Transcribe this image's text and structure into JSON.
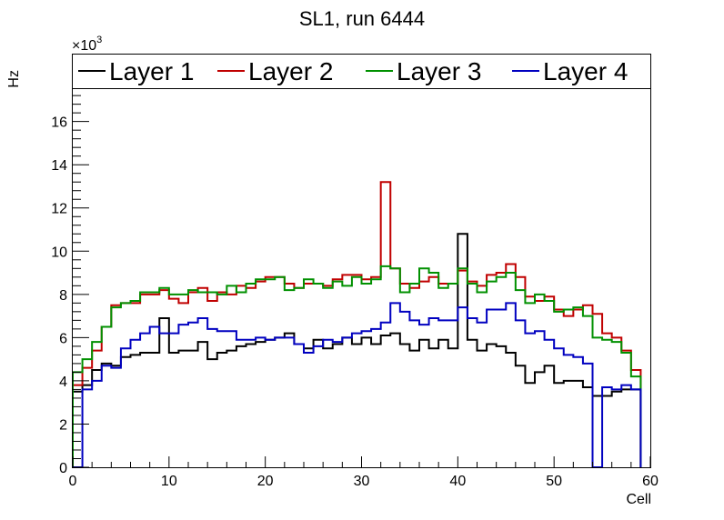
{
  "chart_data": {
    "type": "line",
    "title": "SL1, run 6444",
    "xlabel": "Cell",
    "ylabel": "Hz",
    "y_multiplier_label": "×10",
    "y_multiplier_exponent": "3",
    "xlim": [
      0,
      60
    ],
    "ylim": [
      0,
      17.5
    ],
    "x_ticks": [
      0,
      10,
      20,
      30,
      40,
      50,
      60
    ],
    "y_ticks": [
      0,
      2,
      4,
      6,
      8,
      10,
      12,
      14,
      16
    ],
    "x_tick_labels": [
      "0",
      "10",
      "20",
      "30",
      "40",
      "50",
      "60"
    ],
    "y_tick_labels": [
      "0",
      "2",
      "4",
      "6",
      "8",
      "10",
      "12",
      "14",
      "16"
    ],
    "grid": false,
    "legend_position": "top",
    "bin_edges": [
      0,
      1,
      2,
      3,
      4,
      5,
      6,
      7,
      8,
      9,
      10,
      11,
      12,
      13,
      14,
      15,
      16,
      17,
      18,
      19,
      20,
      21,
      22,
      23,
      24,
      25,
      26,
      27,
      28,
      29,
      30,
      31,
      32,
      33,
      34,
      35,
      36,
      37,
      38,
      39,
      40,
      41,
      42,
      43,
      44,
      45,
      46,
      47,
      48,
      49,
      50,
      51,
      52,
      53,
      54,
      55,
      56,
      57,
      58,
      59
    ],
    "series": [
      {
        "name": "Layer 1",
        "color": "#000000",
        "values": [
          3.5,
          3.8,
          4.5,
          4.8,
          4.7,
          5.1,
          5.2,
          5.3,
          5.3,
          6.9,
          5.3,
          5.4,
          5.4,
          5.8,
          5.0,
          5.3,
          5.4,
          5.6,
          5.7,
          5.8,
          5.9,
          6.0,
          6.2,
          5.7,
          5.5,
          5.9,
          5.5,
          5.7,
          6.0,
          5.7,
          6.0,
          5.7,
          6.1,
          6.2,
          5.7,
          5.4,
          5.9,
          5.5,
          5.9,
          5.5,
          10.8,
          5.9,
          5.4,
          5.7,
          5.6,
          5.3,
          4.7,
          3.9,
          4.4,
          4.7,
          3.9,
          4.0,
          4.0,
          3.7,
          3.3,
          3.3,
          3.5,
          3.6,
          3.6
        ]
      },
      {
        "name": "Layer 2",
        "color": "#c00000",
        "values": [
          3.8,
          4.6,
          5.4,
          6.5,
          7.5,
          7.6,
          7.6,
          8.0,
          8.0,
          8.2,
          7.8,
          7.6,
          8.1,
          8.3,
          7.7,
          8.1,
          8.0,
          8.4,
          8.3,
          8.6,
          8.8,
          8.8,
          8.5,
          8.3,
          8.5,
          8.5,
          8.4,
          8.7,
          8.9,
          8.9,
          8.7,
          8.8,
          13.2,
          9.2,
          8.5,
          8.3,
          8.6,
          8.8,
          8.5,
          8.5,
          9.1,
          8.6,
          8.4,
          8.9,
          9.0,
          9.4,
          8.8,
          7.9,
          7.7,
          7.9,
          7.3,
          7.0,
          7.3,
          7.5,
          7.1,
          6.2,
          6.0,
          5.4,
          4.5
        ]
      },
      {
        "name": "Layer 3",
        "color": "#009000",
        "values": [
          4.4,
          5.0,
          5.8,
          6.5,
          7.4,
          7.6,
          7.7,
          8.1,
          8.1,
          8.3,
          8.0,
          8.0,
          8.2,
          8.1,
          8.1,
          8.0,
          8.4,
          8.1,
          8.5,
          8.7,
          8.7,
          8.8,
          8.2,
          8.3,
          8.7,
          8.5,
          8.3,
          8.6,
          8.4,
          8.8,
          8.5,
          8.7,
          9.3,
          9.2,
          8.1,
          8.5,
          9.2,
          9.0,
          8.3,
          8.5,
          9.2,
          8.5,
          8.1,
          8.6,
          8.8,
          9.0,
          8.2,
          7.6,
          8.0,
          7.7,
          7.2,
          7.3,
          7.4,
          7.0,
          6.0,
          5.9,
          5.8,
          5.3,
          4.2
        ]
      },
      {
        "name": "Layer 4",
        "color": "#0000c0",
        "values": [
          0,
          3.6,
          4.0,
          4.7,
          4.6,
          5.5,
          5.9,
          6.2,
          6.5,
          6.2,
          6.2,
          6.6,
          6.7,
          6.9,
          6.4,
          6.3,
          6.3,
          5.9,
          5.9,
          6.0,
          5.9,
          6.0,
          6.0,
          5.7,
          5.3,
          5.6,
          5.9,
          5.8,
          6.0,
          6.2,
          6.3,
          6.4,
          6.7,
          7.6,
          7.2,
          6.8,
          6.6,
          6.9,
          6.8,
          6.8,
          7.4,
          6.9,
          6.7,
          7.3,
          7.3,
          7.6,
          6.8,
          6.2,
          6.3,
          5.9,
          5.5,
          5.2,
          5.1,
          4.8,
          0,
          3.7,
          3.6,
          3.8,
          3.6
        ]
      }
    ]
  }
}
